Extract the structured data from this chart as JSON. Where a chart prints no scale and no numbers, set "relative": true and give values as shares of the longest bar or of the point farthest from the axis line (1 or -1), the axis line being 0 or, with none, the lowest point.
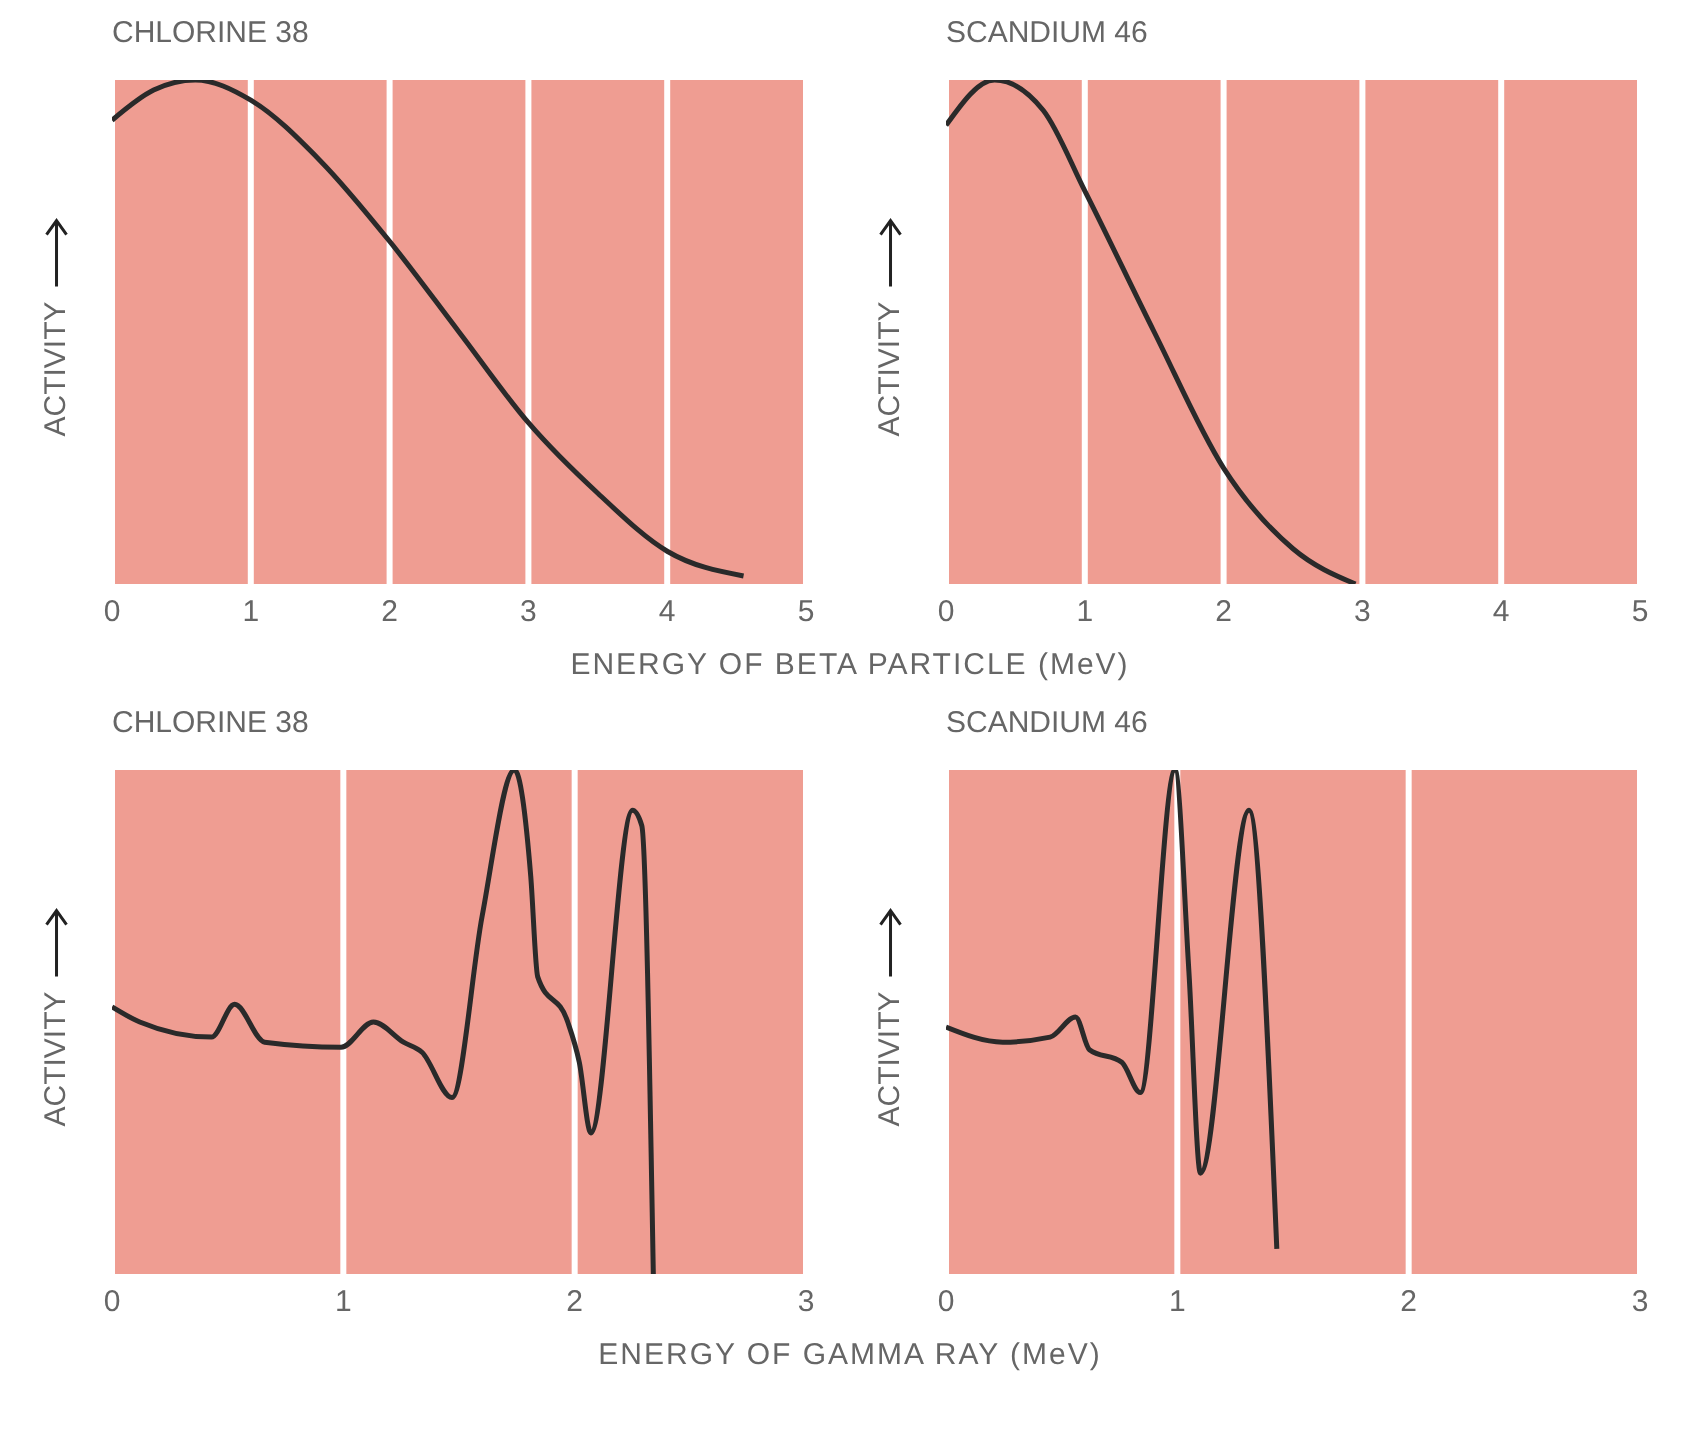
{
  "chart_data": [
    {
      "type": "line",
      "title": "CHLORINE 38",
      "xlabel": "ENERGY OF BETA PARTICLE (MeV)",
      "ylabel": "ACTIVITY",
      "relative": true,
      "grid": "x",
      "color": "#2a2a2a",
      "xlim": [
        0,
        5
      ],
      "xticks": [
        0,
        1,
        2,
        3,
        4,
        5
      ],
      "x": [
        0,
        0.3,
        0.6,
        1,
        1.5,
        2,
        2.5,
        3,
        3.5,
        4,
        4.55
      ],
      "values": [
        0.92,
        0.98,
        1,
        0.96,
        0.84,
        0.68,
        0.5,
        0.32,
        0.18,
        0.065,
        0.016
      ]
    },
    {
      "type": "line",
      "title": "SCANDIUM 46",
      "ylabel": "ACTIVITY",
      "relative": true,
      "grid": "x",
      "color": "#2a2a2a",
      "xlim": [
        0,
        5
      ],
      "xticks": [
        0,
        1,
        2,
        3,
        4,
        5
      ],
      "x": [
        0,
        0.35,
        0.7,
        1,
        1.5,
        2,
        2.5,
        2.95
      ],
      "values": [
        0.91,
        1,
        0.94,
        0.78,
        0.5,
        0.23,
        0.07,
        0
      ]
    },
    {
      "type": "line",
      "title": "CHLORINE 38",
      "xlabel": "ENERGY OF GAMMA RAY (MeV)",
      "ylabel": "ACTIVITY",
      "relative": true,
      "grid": "x",
      "color": "#2a2a2a",
      "xlim": [
        0,
        3
      ],
      "xticks": [
        0,
        1,
        2,
        3
      ],
      "x": [
        0,
        0.12,
        0.43,
        0.53,
        0.66,
        0.99,
        1.13,
        1.26,
        1.34,
        1.47,
        1.6,
        1.74,
        1.81,
        1.84,
        1.97,
        2.02,
        2.07,
        2.25,
        2.29,
        2.34
      ],
      "values": [
        0.53,
        0.5,
        0.47,
        0.535,
        0.46,
        0.45,
        0.5,
        0.46,
        0.44,
        0.35,
        0.71,
        1,
        0.79,
        0.59,
        0.5,
        0.42,
        0.28,
        0.92,
        0.89,
        0
      ]
    },
    {
      "type": "line",
      "title": "SCANDIUM 46",
      "ylabel": "ACTIVITY",
      "relative": true,
      "grid": "x",
      "color": "#2a2a2a",
      "xlim": [
        0,
        3
      ],
      "xticks": [
        0,
        1,
        2,
        3
      ],
      "x": [
        0,
        0.245,
        0.45,
        0.56,
        0.62,
        0.76,
        0.84,
        0.99,
        1.05,
        1.1,
        1.31,
        1.43
      ],
      "values": [
        0.49,
        0.46,
        0.47,
        0.51,
        0.445,
        0.42,
        0.36,
        1,
        0.6,
        0.2,
        0.92,
        0.05
      ]
    }
  ]
}
